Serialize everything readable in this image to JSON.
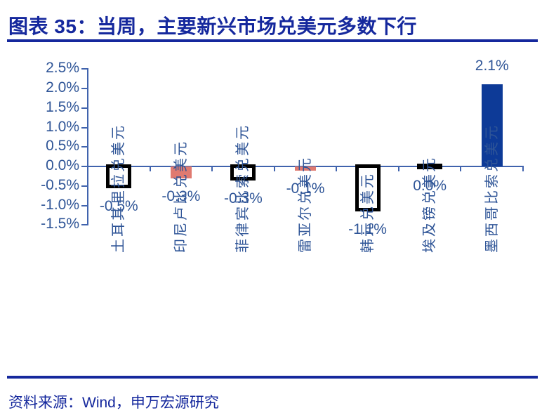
{
  "title": "图表 35：当周，主要新兴市场兑美元多数下行",
  "source": "资料来源：Wind，申万宏源研究",
  "colors": {
    "background": "#FFFFFF",
    "title": "#15289D",
    "rule": "#15289D",
    "axis": "#4063AD",
    "label": "#2F5597",
    "bar_blue": "#0D3A97",
    "bar_pink": "#E07A70",
    "bar_outline": "#000000"
  },
  "chart_data": {
    "type": "bar",
    "title": "图表 35：当周，主要新兴市场兑美元多数下行",
    "xlabel": "",
    "ylabel": "",
    "grid": false,
    "legend": false,
    "ylim": [
      -1.5,
      2.5
    ],
    "ytick_step": 0.5,
    "ytick_labels": [
      "2.5%",
      "2.0%",
      "1.5%",
      "1.0%",
      "0.5%",
      "0.0%",
      "-0.5%",
      "-1.0%",
      "-1.5%"
    ],
    "categories": [
      "土耳其里拉兑美元",
      "印尼卢比兑美元",
      "菲律宾比索兑美元",
      "雷亚尔兑美元",
      "韩元兑美元",
      "埃及镑兑美元",
      "墨西哥比索兑美元"
    ],
    "values": [
      -0.5,
      -0.3,
      -0.3,
      -0.1,
      -1.1,
      0.0,
      2.1
    ],
    "data_labels": [
      "-0.5%",
      "-0.3%",
      "-0.3%",
      "-0.1%",
      "-1.1%",
      "0.0%",
      "2.1%"
    ],
    "bar_styles": [
      "hollow",
      "pink",
      "hollow",
      "pink",
      "hollow",
      "black",
      "blue"
    ]
  }
}
